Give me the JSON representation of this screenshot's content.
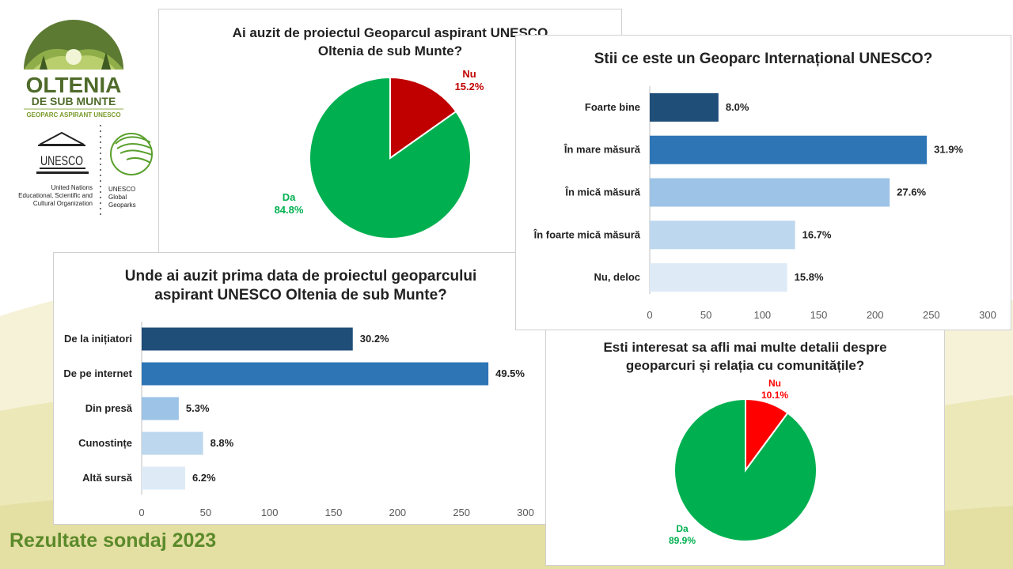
{
  "logo": {
    "name_line1": "OLTENIA",
    "name_line2": "DE SUB MUNTE",
    "tagline": "GEOPARC ASPIRANT UNESCO",
    "unesco_word": "UNESCO",
    "unesco_org": [
      "United Nations",
      "Educational, Scientific and",
      "Cultural Organization"
    ],
    "geoparks": [
      "UNESCO",
      "Global",
      "Geoparks"
    ]
  },
  "footer": {
    "text": "Rezultate sondaj 2023"
  },
  "colors": {
    "green": "#00b050",
    "red": "#c00000",
    "red_bright": "#ff0000",
    "navy": "#1f4e79",
    "blue": "#2e75b6",
    "light_blue": "#9dc3e6",
    "pale_blue": "#bdd7ee",
    "paler_blue": "#deebf7"
  },
  "chart_data": [
    {
      "id": "chart1",
      "type": "pie",
      "title": [
        "Ai auzit de proiectul Geoparcul aspirant UNESCO",
        "Oltenia de sub Munte?"
      ],
      "slices": [
        {
          "label": "Nu",
          "pct_label": "15.2%",
          "value": 15.2,
          "color": "#c00000"
        },
        {
          "label": "Da",
          "pct_label": "84.8%",
          "value": 84.8,
          "color": "#00b050"
        }
      ]
    },
    {
      "id": "chart2",
      "type": "bar",
      "orientation": "horizontal",
      "title": [
        "Stii ce este un Geoparc Internațional UNESCO?"
      ],
      "categories": [
        "Foarte bine",
        "În mare măsură",
        "În mică măsură",
        "În foarte mică măsură",
        "Nu, deloc"
      ],
      "values": [
        61,
        246,
        213,
        129,
        122
      ],
      "labels": [
        "8.0%",
        "31.9%",
        "27.6%",
        "16.7%",
        "15.8%"
      ],
      "colors": [
        "#1f4e79",
        "#2e75b6",
        "#9dc3e6",
        "#bdd7ee",
        "#deebf7"
      ],
      "xlim": [
        0,
        300
      ],
      "ticks": [
        0,
        50,
        100,
        150,
        200,
        250,
        300
      ],
      "grid": false
    },
    {
      "id": "chart3",
      "type": "bar",
      "orientation": "horizontal",
      "title": [
        "Unde ai auzit prima data de proiectul geoparcului",
        "aspirant UNESCO Oltenia de sub Munte?"
      ],
      "categories": [
        "De la inițiatori",
        "De pe internet",
        "Din presă",
        "Cunostințe",
        "Altă sursă"
      ],
      "values": [
        165,
        271,
        29,
        48,
        34
      ],
      "labels": [
        "30.2%",
        "49.5%",
        "5.3%",
        "8.8%",
        "6.2%"
      ],
      "colors": [
        "#1f4e79",
        "#2e75b6",
        "#9dc3e6",
        "#bdd7ee",
        "#deebf7"
      ],
      "xlim": [
        0,
        300
      ],
      "ticks": [
        0,
        50,
        100,
        150,
        200,
        250,
        300
      ],
      "grid": false
    },
    {
      "id": "chart4",
      "type": "pie",
      "title": [
        "Esti interesat sa afli mai multe detalii despre",
        "geoparcuri și relația cu comunitățile?"
      ],
      "slices": [
        {
          "label": "Nu",
          "pct_label": "10.1%",
          "value": 10.1,
          "color": "#ff0000"
        },
        {
          "label": "Da",
          "pct_label": "89.9%",
          "value": 89.9,
          "color": "#00b050"
        }
      ]
    }
  ]
}
